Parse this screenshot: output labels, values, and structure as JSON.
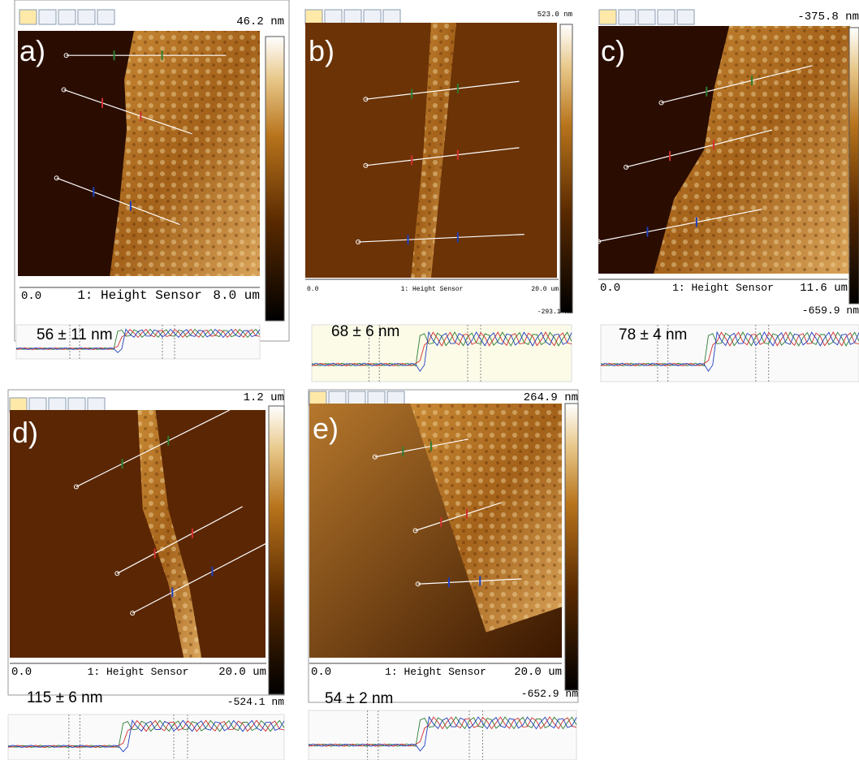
{
  "panels": [
    {
      "letter": "a)",
      "scale_top": "46.2 nm",
      "axis_start": "0.0",
      "axis_label": "1: Height Sensor",
      "axis_end": "8.0 um",
      "measurement": "56 ± 11 nm"
    },
    {
      "letter": "b)",
      "scale_top": "523.0 nm",
      "scale_bottom": "-293.1 nm",
      "axis_start": "0.0",
      "axis_label": "1: Height Sensor",
      "axis_end": "20.0 um",
      "measurement": "68 ± 6 nm"
    },
    {
      "letter": "c)",
      "scale_top": "-375.8 nm",
      "scale_bottom": "-659.9 nm",
      "axis_start": "0.0",
      "axis_label": "1: Height Sensor",
      "axis_end": "11.6 um",
      "measurement": "78 ± 4 nm"
    },
    {
      "letter": "d)",
      "scale_top": "1.2 um",
      "scale_bottom": "-524.1 nm",
      "axis_start": "0.0",
      "axis_label": "1: Height Sensor",
      "axis_end": "20.0 um",
      "measurement": "115 ± 6  nm"
    },
    {
      "letter": "e)",
      "scale_top": "264.9 nm",
      "scale_bottom": "-652.9 nm",
      "axis_start": "0.0",
      "axis_label": "1: Height Sensor",
      "axis_end": "20.0 um",
      "measurement": "54 ± 2 nm"
    }
  ]
}
